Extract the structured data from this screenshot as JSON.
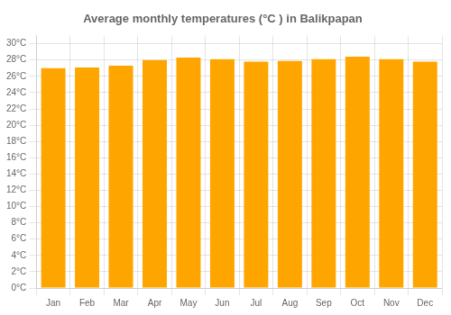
{
  "chart_data": {
    "type": "bar",
    "title": "Average monthly temperatures (°C ) in Balikpapan",
    "categories": [
      "Jan",
      "Feb",
      "Mar",
      "Apr",
      "May",
      "Jun",
      "Jul",
      "Aug",
      "Sep",
      "Oct",
      "Nov",
      "Dec"
    ],
    "values": [
      27.0,
      27.1,
      27.3,
      28.0,
      28.3,
      28.1,
      27.8,
      27.9,
      28.1,
      28.4,
      28.1,
      27.8
    ],
    "color": "#FFA500",
    "ylim": [
      0,
      31
    ],
    "yticks": [
      {
        "value": 0,
        "label": "0°C"
      },
      {
        "value": 2,
        "label": "2°C"
      },
      {
        "value": 4,
        "label": "4°C"
      },
      {
        "value": 6,
        "label": "6°C"
      },
      {
        "value": 8,
        "label": "8°C"
      },
      {
        "value": 10,
        "label": "10°C"
      },
      {
        "value": 12,
        "label": "12°C"
      },
      {
        "value": 14,
        "label": "14°C"
      },
      {
        "value": 16,
        "label": "16°C"
      },
      {
        "value": 18,
        "label": "18°C"
      },
      {
        "value": 20,
        "label": "20°C"
      },
      {
        "value": 22,
        "label": "22°C"
      },
      {
        "value": 24,
        "label": "24°C"
      },
      {
        "value": 26,
        "label": "26°C"
      },
      {
        "value": 28,
        "label": "28°C"
      },
      {
        "value": 30,
        "label": "30°C"
      }
    ],
    "grid": true
  }
}
